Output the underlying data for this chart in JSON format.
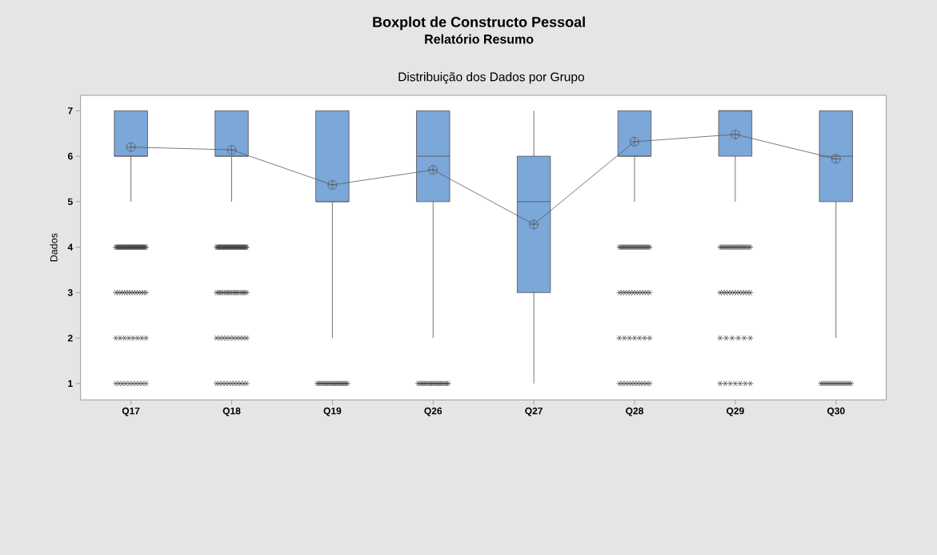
{
  "chart_data": {
    "type": "box",
    "title": "Boxplot de Constructo Pessoal",
    "subtitle": "Relatório Resumo",
    "annotations": [
      "Distribuição dos Dados por Grupo"
    ],
    "ylabel": "Dados",
    "categories": [
      "Q17",
      "Q18",
      "Q19",
      "Q26",
      "Q27",
      "Q28",
      "Q29",
      "Q30"
    ],
    "ylim": [
      0.64,
      7.34
    ],
    "yticks": [
      1,
      2,
      3,
      4,
      5,
      6,
      7
    ],
    "series": [
      {
        "color": "#7ba7d9",
        "boxes": [
          {
            "low": 5,
            "q1": 6,
            "median": 6,
            "q3": 7,
            "high": 7,
            "mean": 6.2,
            "outliers": [
              4,
              4,
              4,
              4,
              4,
              4,
              4,
              4,
              4,
              4,
              4,
              4,
              4,
              4,
              4,
              4,
              4,
              4,
              4,
              4,
              4,
              4,
              4,
              4,
              4,
              4,
              4,
              4,
              4,
              4,
              4,
              4,
              4,
              4,
              4,
              4,
              4,
              4,
              4,
              4,
              3,
              3,
              3,
              3,
              3,
              3,
              3,
              3,
              3,
              3,
              3,
              3,
              3,
              2,
              2,
              2,
              2,
              2,
              2,
              2,
              2,
              1,
              1,
              1,
              1,
              1,
              1,
              1,
              1,
              1,
              1
            ]
          },
          {
            "low": 5,
            "q1": 6,
            "median": 6,
            "q3": 7,
            "high": 7,
            "mean": 6.14,
            "outliers": [
              4,
              4,
              4,
              4,
              4,
              4,
              4,
              4,
              4,
              4,
              4,
              4,
              4,
              4,
              4,
              4,
              4,
              4,
              4,
              4,
              4,
              4,
              4,
              4,
              4,
              4,
              4,
              4,
              4,
              4,
              4,
              4,
              4,
              4,
              4,
              4,
              4,
              4,
              4,
              4,
              3,
              3,
              3,
              3,
              3,
              3,
              3,
              3,
              3,
              3,
              3,
              3,
              3,
              3,
              3,
              3,
              3,
              3,
              2,
              2,
              2,
              2,
              2,
              2,
              2,
              2,
              2,
              2,
              1,
              1,
              1,
              1,
              1,
              1,
              1,
              1,
              1,
              1,
              1
            ]
          },
          {
            "low": 2,
            "q1": 5,
            "median": 5,
            "q3": 7,
            "high": 7,
            "mean": 5.37,
            "outliers": [
              1,
              1,
              1,
              1,
              1,
              1,
              1,
              1,
              1,
              1,
              1,
              1,
              1,
              1,
              1,
              1,
              1,
              1,
              1,
              1
            ]
          },
          {
            "low": 2,
            "q1": 5,
            "median": 6,
            "q3": 7,
            "high": 7,
            "mean": 5.7,
            "outliers": [
              1,
              1,
              1,
              1,
              1,
              1,
              1,
              1,
              1,
              1,
              1,
              1,
              1,
              1,
              1,
              1,
              1,
              1
            ]
          },
          {
            "low": 1,
            "q1": 3,
            "median": 5,
            "q3": 6,
            "high": 7,
            "mean": 4.5
          },
          {
            "low": 5,
            "q1": 6,
            "median": 6,
            "q3": 7,
            "high": 7,
            "mean": 6.32,
            "outliers": [
              4,
              4,
              4,
              4,
              4,
              4,
              4,
              4,
              4,
              4,
              4,
              4,
              4,
              4,
              4,
              4,
              4,
              4,
              4,
              4,
              4,
              4,
              4,
              4,
              3,
              3,
              3,
              3,
              3,
              3,
              3,
              3,
              3,
              3,
              3,
              3,
              2,
              2,
              2,
              2,
              2,
              2,
              2,
              1,
              1,
              1,
              1,
              1,
              1,
              1,
              1,
              1,
              1,
              1
            ]
          },
          {
            "low": 5,
            "q1": 6,
            "median": 7,
            "q3": 7,
            "high": 7,
            "mean": 6.48,
            "outliers": [
              4,
              4,
              4,
              4,
              4,
              4,
              4,
              4,
              4,
              4,
              4,
              4,
              4,
              4,
              4,
              4,
              4,
              4,
              4,
              4,
              3,
              3,
              3,
              3,
              3,
              3,
              3,
              3,
              3,
              3,
              3,
              3,
              2,
              2,
              2,
              2,
              2,
              2,
              1,
              1,
              1,
              1,
              1,
              1,
              1
            ]
          },
          {
            "low": 2,
            "q1": 5,
            "median": 6,
            "q3": 7,
            "high": 7,
            "mean": 5.94,
            "outliers": [
              1,
              1,
              1,
              1,
              1,
              1,
              1,
              1,
              1,
              1,
              1,
              1,
              1,
              1,
              1,
              1
            ]
          }
        ]
      },
      {
        "type": "line",
        "color": "#5a5a5a",
        "values": [
          6.2,
          6.14,
          5.37,
          5.7,
          4.5,
          6.32,
          6.48,
          5.94
        ]
      }
    ]
  }
}
